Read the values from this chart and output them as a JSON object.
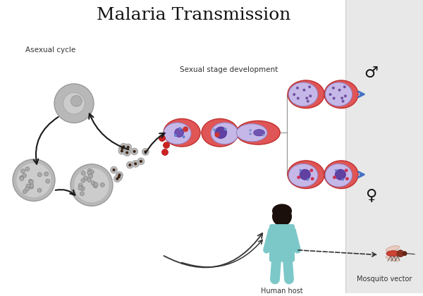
{
  "title": "Malaria Transmission",
  "title_fontsize": 18,
  "bg_color": "#ffffff",
  "right_panel_color": "#e8e8e8",
  "text_asexual": "Asexual cycle",
  "text_sexual": "Sexual stage development",
  "text_human": "Human host",
  "text_mosquito": "Mosquito vector",
  "male_symbol": "♂",
  "female_symbol": "♀",
  "gray_light": "#b8b8b8",
  "gray_mid": "#999999",
  "gray_dark": "#666666",
  "red_cell": "#e05555",
  "red_cell_dark": "#c03030",
  "lavender": "#c5b8e8",
  "lavender_dark": "#9080c0",
  "blue_arrow": "#4472c4",
  "black": "#1a1a1a",
  "human_body": "#7cc8c8",
  "human_head": "#2a1a10",
  "merozoite_gray": "#888888",
  "merozoite_dark": "#3a2010"
}
